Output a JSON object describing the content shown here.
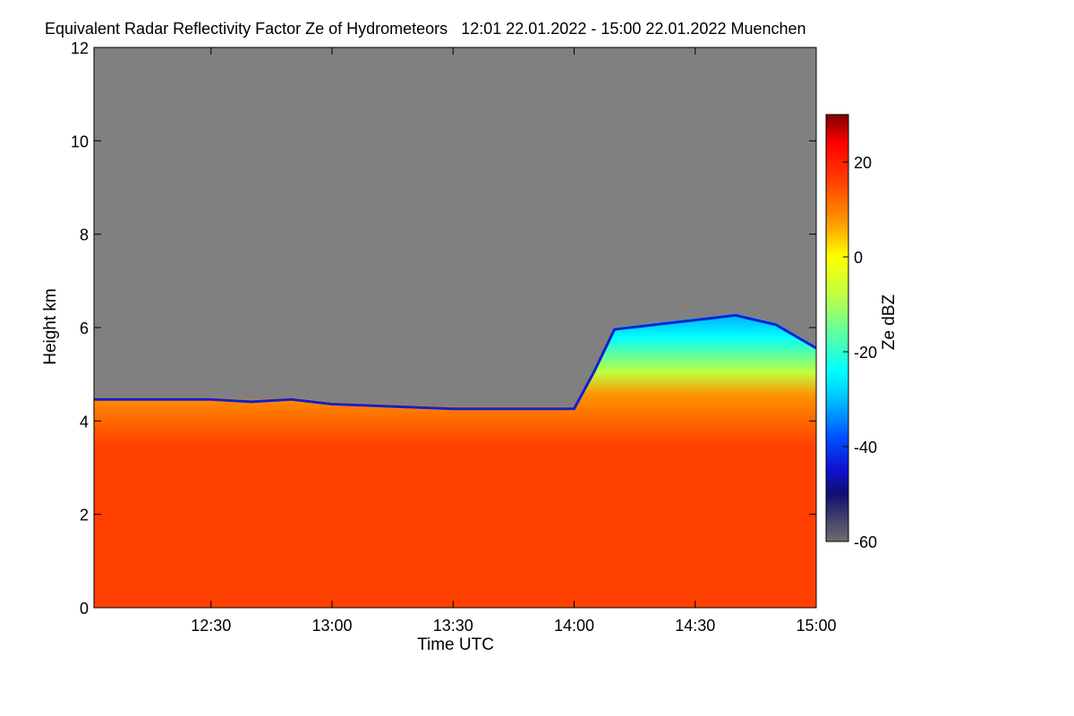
{
  "chart_data": {
    "type": "heatmap",
    "title": "Equivalent Radar Reflectivity Factor Ze of Hydrometeors",
    "time_range": "12:01 22.01.2022 - 15:00 22.01.2022",
    "location": "Muenchen",
    "xlabel": "Time UTC",
    "ylabel": "Height km",
    "x_ticks": [
      "12:30",
      "13:00",
      "13:30",
      "14:00",
      "14:30",
      "15:00"
    ],
    "y_ticks": [
      "0",
      "2",
      "4",
      "6",
      "8",
      "10",
      "12"
    ],
    "xlim": [
      "12:01",
      "15:00"
    ],
    "ylim": [
      0,
      12
    ],
    "colorbar": {
      "label": "Ze dBZ",
      "ticks": [
        "20",
        "0",
        "-20",
        "-40",
        "-60"
      ],
      "range": [
        -60,
        30
      ]
    },
    "no_data_color": "#808080",
    "echo_top_profile": [
      {
        "time": "12:01",
        "top_km": 4.5
      },
      {
        "time": "12:30",
        "top_km": 4.5
      },
      {
        "time": "12:40",
        "top_km": 4.45
      },
      {
        "time": "12:50",
        "top_km": 4.5
      },
      {
        "time": "13:00",
        "top_km": 4.4
      },
      {
        "time": "13:30",
        "top_km": 4.3
      },
      {
        "time": "13:50",
        "top_km": 4.3
      },
      {
        "time": "14:00",
        "top_km": 4.3
      },
      {
        "time": "14:05",
        "top_km": 5.1
      },
      {
        "time": "14:10",
        "top_km": 6.0
      },
      {
        "time": "14:20",
        "top_km": 6.1
      },
      {
        "time": "14:30",
        "top_km": 6.2
      },
      {
        "time": "14:40",
        "top_km": 6.3
      },
      {
        "time": "14:50",
        "top_km": 6.1
      },
      {
        "time": "15:00",
        "top_km": 5.6
      }
    ],
    "colormap": [
      {
        "dbz": -60,
        "color": "#6e6e6e"
      },
      {
        "dbz": -50,
        "color": "#101070"
      },
      {
        "dbz": -45,
        "color": "#1010d0"
      },
      {
        "dbz": -38,
        "color": "#0050ff"
      },
      {
        "dbz": -30,
        "color": "#00c0ff"
      },
      {
        "dbz": -24,
        "color": "#00ffff"
      },
      {
        "dbz": -16,
        "color": "#60ffa0"
      },
      {
        "dbz": -8,
        "color": "#c0ff40"
      },
      {
        "dbz": 0,
        "color": "#ffff00"
      },
      {
        "dbz": 8,
        "color": "#ff9000"
      },
      {
        "dbz": 16,
        "color": "#ff4000"
      },
      {
        "dbz": 24,
        "color": "#ff0000"
      },
      {
        "dbz": 30,
        "color": "#800000"
      }
    ]
  }
}
